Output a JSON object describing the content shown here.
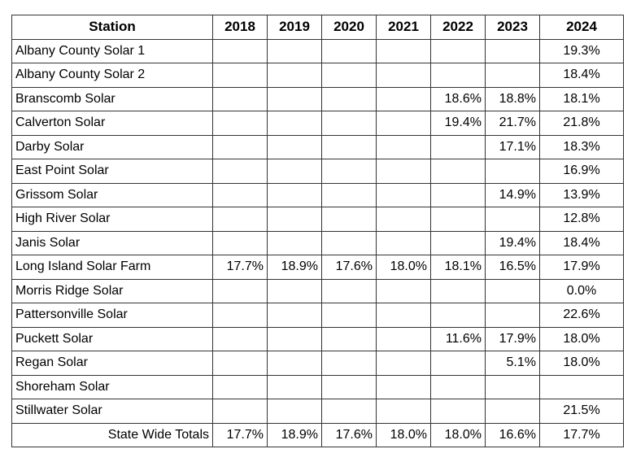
{
  "colors": {
    "border": "#333333",
    "text": "#000000",
    "background": "#ffffff"
  },
  "chart_data": {
    "type": "table",
    "columns": [
      "Station",
      "2018",
      "2019",
      "2020",
      "2021",
      "2022",
      "2023",
      "2024"
    ],
    "rows": [
      [
        "Albany County Solar 1",
        "",
        "",
        "",
        "",
        "",
        "",
        "19.3%"
      ],
      [
        "Albany County Solar 2",
        "",
        "",
        "",
        "",
        "",
        "",
        "18.4%"
      ],
      [
        "Branscomb Solar",
        "",
        "",
        "",
        "",
        "18.6%",
        "18.8%",
        "18.1%"
      ],
      [
        "Calverton Solar",
        "",
        "",
        "",
        "",
        "19.4%",
        "21.7%",
        "21.8%"
      ],
      [
        "Darby Solar",
        "",
        "",
        "",
        "",
        "",
        "17.1%",
        "18.3%"
      ],
      [
        "East Point Solar",
        "",
        "",
        "",
        "",
        "",
        "",
        "16.9%"
      ],
      [
        "Grissom Solar",
        "",
        "",
        "",
        "",
        "",
        "14.9%",
        "13.9%"
      ],
      [
        "High River Solar",
        "",
        "",
        "",
        "",
        "",
        "",
        "12.8%"
      ],
      [
        "Janis Solar",
        "",
        "",
        "",
        "",
        "",
        "19.4%",
        "18.4%"
      ],
      [
        "Long Island Solar Farm",
        "17.7%",
        "18.9%",
        "17.6%",
        "18.0%",
        "18.1%",
        "16.5%",
        "17.9%"
      ],
      [
        "Morris Ridge Solar",
        "",
        "",
        "",
        "",
        "",
        "",
        "0.0%"
      ],
      [
        "Pattersonville Solar",
        "",
        "",
        "",
        "",
        "",
        "",
        "22.6%"
      ],
      [
        "Puckett Solar",
        "",
        "",
        "",
        "",
        "11.6%",
        "17.9%",
        "18.0%"
      ],
      [
        "Regan Solar",
        "",
        "",
        "",
        "",
        "",
        "5.1%",
        "18.0%"
      ],
      [
        "Shoreham Solar",
        "",
        "",
        "",
        "",
        "",
        "",
        ""
      ],
      [
        "Stillwater Solar",
        "",
        "",
        "",
        "",
        "",
        "",
        "21.5%"
      ],
      [
        "State Wide Totals",
        "17.7%",
        "18.9%",
        "17.6%",
        "18.0%",
        "18.0%",
        "16.6%",
        "17.7%"
      ]
    ],
    "total_row_label": "State Wide Totals",
    "layout": {
      "header_bold": true,
      "station_column_align": "left",
      "year_value_align": "right",
      "last_column_align": "center"
    }
  }
}
